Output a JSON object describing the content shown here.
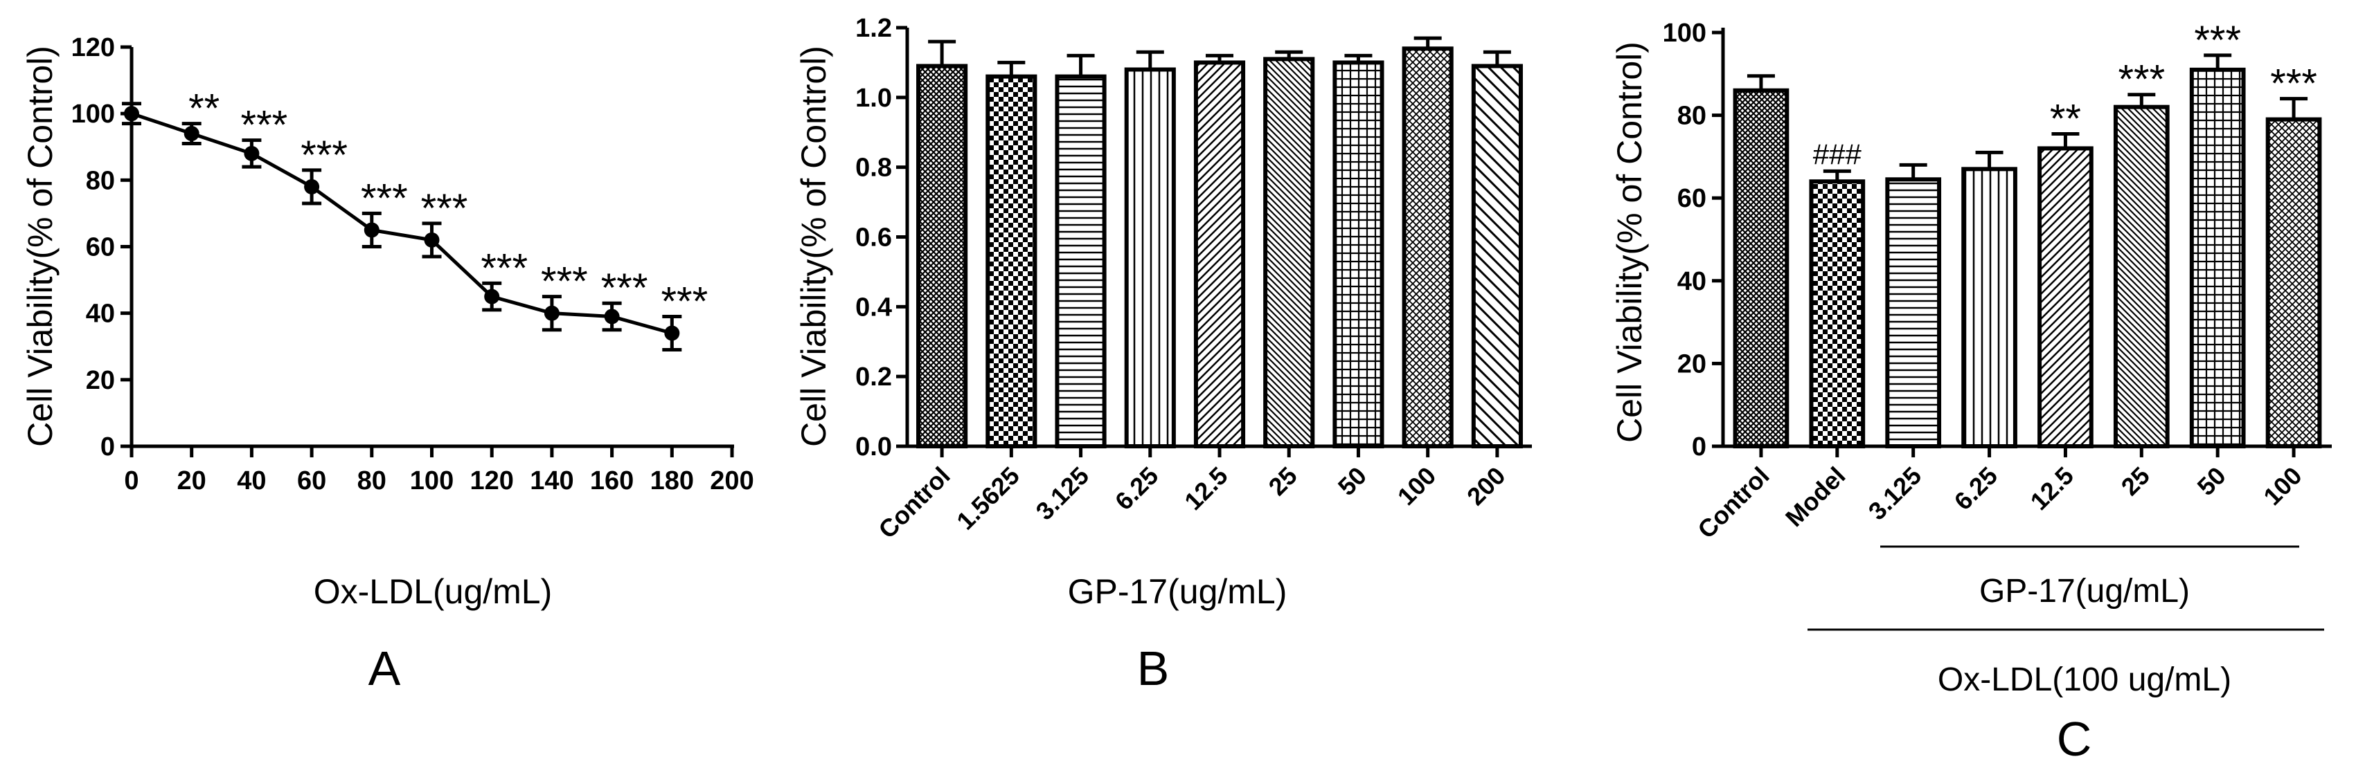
{
  "chart_data": [
    {
      "panel": "A",
      "type": "line",
      "xlabel": "Ox-LDL(ug/mL)",
      "ylabel": "Cell Viability(% of Control)",
      "xlim": [
        0,
        200
      ],
      "ylim": [
        0,
        120
      ],
      "xticks": [
        "0",
        "20",
        "40",
        "60",
        "80",
        "100",
        "120",
        "140",
        "160",
        "180",
        "200"
      ],
      "yticks": [
        "0",
        "20",
        "40",
        "60",
        "80",
        "100",
        "120"
      ],
      "x": [
        0,
        20,
        40,
        60,
        80,
        100,
        120,
        140,
        160,
        180
      ],
      "y": [
        100,
        94,
        88,
        78,
        65,
        62,
        45,
        40,
        39,
        34
      ],
      "error": [
        3,
        3,
        4,
        5,
        5,
        5,
        4,
        5,
        4,
        5
      ],
      "significance": [
        "",
        "**",
        "***",
        "***",
        "***",
        "***",
        "***",
        "***",
        "***",
        "***"
      ],
      "grid": false
    },
    {
      "panel": "B",
      "type": "bar",
      "xlabel": "GP-17(ug/mL)",
      "ylabel": "Cell Viability(% of Control)",
      "ylim": [
        0,
        1.2
      ],
      "yticks": [
        "0.0",
        "0.2",
        "0.4",
        "0.6",
        "0.8",
        "1.0",
        "1.2"
      ],
      "categories": [
        "Control",
        "1.5625",
        "3.125",
        "6.25",
        "12.5",
        "25",
        "50",
        "100",
        "200"
      ],
      "values": [
        1.09,
        1.06,
        1.06,
        1.08,
        1.1,
        1.11,
        1.1,
        1.14,
        1.09
      ],
      "error": [
        0.07,
        0.04,
        0.06,
        0.05,
        0.02,
        0.02,
        0.02,
        0.03,
        0.04
      ],
      "patterns": [
        "crosshatch",
        "checker",
        "hlines",
        "vlines",
        "diag-right",
        "diag-left-dense",
        "grid",
        "diag-cross",
        "diag-left"
      ],
      "grid": false
    },
    {
      "panel": "C",
      "type": "bar",
      "ylabel": "Cell Viability(% of Control)",
      "group_label_inner": "GP-17(ug/mL)",
      "group_label_outer": "Ox-LDL(100 ug/mL)",
      "ylim": [
        0,
        100
      ],
      "yticks": [
        "0",
        "20",
        "40",
        "60",
        "80",
        "100"
      ],
      "categories": [
        "Control",
        "Model",
        "3.125",
        "6.25",
        "12.5",
        "25",
        "50",
        "100"
      ],
      "values": [
        86,
        64,
        64.5,
        67,
        72,
        82,
        91,
        79
      ],
      "error": [
        3.5,
        2.5,
        3.5,
        4,
        3.5,
        3,
        3.5,
        5
      ],
      "significance": [
        "",
        "###",
        "",
        "",
        "**",
        "***",
        "***",
        "***"
      ],
      "patterns": [
        "crosshatch",
        "checker",
        "hlines",
        "vlines",
        "diag-right",
        "diag-left-dense",
        "grid",
        "diag-cross"
      ],
      "grid": false
    }
  ],
  "panel_labels": [
    "A",
    "B",
    "C"
  ]
}
